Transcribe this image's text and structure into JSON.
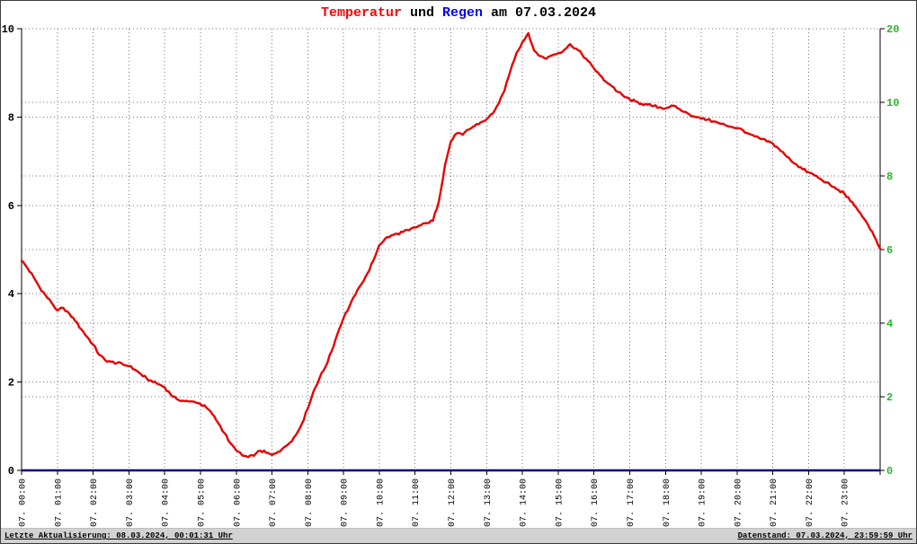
{
  "window": {
    "title": "Temperatur und Regen am 07.03.2024"
  },
  "footer": {
    "left": "Letzte Aktualisierung: 08.03.2024, 00:01:31 Uhr",
    "right": "Datenstand: 07.03.2024, 23:59:59 Uhr"
  },
  "colors": {
    "temperature_line": "#e60000",
    "rain_line": "#000080",
    "right_axis_text": "#2db32d",
    "grid": "#777777",
    "title_red": "#ff0000",
    "title_blue": "#0000ff"
  },
  "chart_data": {
    "type": "line",
    "title": "Temperatur und Regen am 07.03.2024",
    "title_parts": [
      {
        "text": "Temperatur",
        "color": "#ff0000"
      },
      {
        "text": " und ",
        "color": "#000000"
      },
      {
        "text": "Regen",
        "color": "#0000ff"
      },
      {
        "text": " am 07.03.2024",
        "color": "#000000"
      }
    ],
    "grid": {
      "horizontal": true,
      "vertical": true,
      "style": "dotted",
      "color": "#777777"
    },
    "x_axis": {
      "range_hours": [
        0,
        24
      ],
      "tick_interval_hours": 1,
      "tick_labels": [
        "07. 00:00",
        "07. 01:00",
        "07. 02:00",
        "07. 03:00",
        "07. 04:00",
        "07. 05:00",
        "07. 06:00",
        "07. 07:00",
        "07. 08:00",
        "07. 09:00",
        "07. 10:00",
        "07. 11:00",
        "07. 12:00",
        "07. 13:00",
        "07. 14:00",
        "07. 15:00",
        "07. 16:00",
        "07. 17:00",
        "07. 18:00",
        "07. 19:00",
        "07. 20:00",
        "07. 21:00",
        "07. 22:00",
        "07. 23:00"
      ]
    },
    "left_axis": {
      "series": "Temperatur",
      "color": "#000000",
      "range": [
        0,
        10
      ],
      "ticks": [
        0,
        2,
        4,
        6,
        8,
        10
      ]
    },
    "right_axis": {
      "series": "Regen",
      "color": "#2db32d",
      "ticks": [
        0,
        2,
        4,
        6,
        8,
        10,
        20
      ],
      "scale_note": "ticks evenly spaced; 0-10 linear, top segment jumps to 20"
    },
    "series": [
      {
        "name": "Temperatur",
        "axis": "left",
        "color": "#e60000",
        "x_start_hour": 0,
        "x_step_minutes": 10,
        "values": [
          4.75,
          4.58,
          4.38,
          4.15,
          3.97,
          3.8,
          3.62,
          3.68,
          3.55,
          3.38,
          3.2,
          3.02,
          2.85,
          2.62,
          2.5,
          2.46,
          2.43,
          2.4,
          2.36,
          2.28,
          2.18,
          2.08,
          2.0,
          1.95,
          1.88,
          1.72,
          1.62,
          1.58,
          1.56,
          1.55,
          1.5,
          1.42,
          1.27,
          1.07,
          0.85,
          0.62,
          0.45,
          0.34,
          0.3,
          0.33,
          0.45,
          0.4,
          0.35,
          0.42,
          0.52,
          0.63,
          0.8,
          1.05,
          1.4,
          1.8,
          2.1,
          2.35,
          2.7,
          3.1,
          3.45,
          3.72,
          3.98,
          4.22,
          4.46,
          4.75,
          5.1,
          5.25,
          5.32,
          5.36,
          5.4,
          5.44,
          5.5,
          5.55,
          5.6,
          5.65,
          6.1,
          6.9,
          7.45,
          7.63,
          7.6,
          7.72,
          7.8,
          7.88,
          7.95,
          8.08,
          8.3,
          8.6,
          9.05,
          9.45,
          9.7,
          9.9,
          9.5,
          9.38,
          9.32,
          9.4,
          9.45,
          9.52,
          9.65,
          9.55,
          9.42,
          9.27,
          9.1,
          8.95,
          8.8,
          8.7,
          8.57,
          8.47,
          8.4,
          8.35,
          8.3,
          8.28,
          8.25,
          8.22,
          8.2,
          8.26,
          8.2,
          8.12,
          8.06,
          8.0,
          7.96,
          7.94,
          7.9,
          7.86,
          7.82,
          7.78,
          7.75,
          7.7,
          7.62,
          7.56,
          7.5,
          7.45,
          7.4,
          7.28,
          7.15,
          7.02,
          6.92,
          6.82,
          6.75,
          6.68,
          6.6,
          6.52,
          6.42,
          6.35,
          6.27,
          6.1,
          5.95,
          5.75,
          5.55,
          5.3,
          5.02
        ]
      },
      {
        "name": "Regen",
        "axis": "right",
        "color": "#000080",
        "x_hours": [
          0,
          24
        ],
        "values": [
          0,
          0
        ]
      }
    ]
  }
}
